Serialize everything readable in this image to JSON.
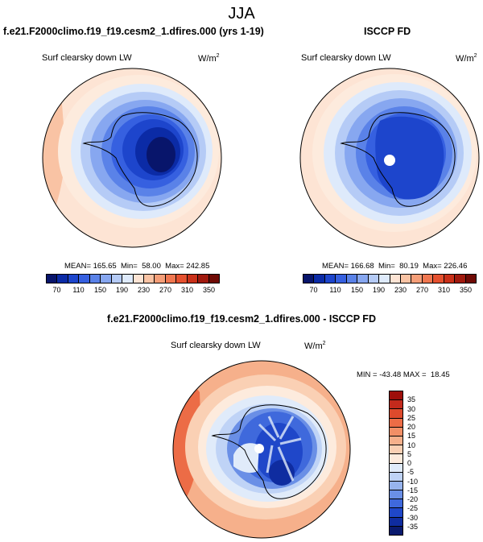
{
  "season": "JJA",
  "panel_model": {
    "title": "f.e21.F2000climo.f19_f19.cesm2_1.dfires.000 (yrs 1-19)",
    "variable": "Surf clearsky down LW",
    "units": "W/m",
    "units_exp": "2",
    "stats": "MEAN= 165.65  Min=  58.00  Max= 242.85"
  },
  "panel_obs": {
    "title": "ISCCP FD",
    "variable": "Surf clearsky down LW",
    "units": "W/m",
    "units_exp": "2",
    "stats": "MEAN= 166.68  Min=  80.19  Max= 226.46"
  },
  "panel_diff": {
    "title": "f.e21.F2000climo.f19_f19.cesm2_1.dfires.000 - ISCCP FD",
    "variable": "Surf clearsky down LW",
    "units": "W/m",
    "units_exp": "2",
    "stats": "MIN = -43.48 MAX =  18.45"
  },
  "abs_colorbar": {
    "labels": [
      "70",
      "110",
      "150",
      "190",
      "230",
      "270",
      "310",
      "350"
    ],
    "colors": [
      "#08156b",
      "#0b2ba6",
      "#1d45cc",
      "#3660e0",
      "#5a82e8",
      "#87a7f0",
      "#b5cbf6",
      "#deeafb",
      "#fde4d4",
      "#f9c3a4",
      "#f59e78",
      "#f07750",
      "#e5512f",
      "#c93019",
      "#a0190d",
      "#6f0a05"
    ]
  },
  "diff_colorbar": {
    "labels": [
      "35",
      "30",
      "25",
      "20",
      "15",
      "10",
      "5",
      "0",
      "-5",
      "-10",
      "-15",
      "-20",
      "-25",
      "-30",
      "-35"
    ],
    "colors": [
      "#9e0f0a",
      "#c32a1c",
      "#dd4a2c",
      "#ec6c46",
      "#f28f66",
      "#f6b08b",
      "#fad0b4",
      "#fdebdd",
      "#e0ebfa",
      "#bfd3f6",
      "#97b4ee",
      "#6a8fe6",
      "#3f69dc",
      "#1f47c9",
      "#0f2ca0",
      "#0a1a6e"
    ]
  },
  "chart_data": [
    {
      "type": "heatmap",
      "title": "f.e21.F2000climo.f19_f19.cesm2_1.dfires.000 (yrs 1-19)",
      "subtitle": "Surf clearsky down LW (W/m2)",
      "projection": "south polar stereographic",
      "mean": 165.65,
      "min": 58.0,
      "max": 242.85,
      "contour_levels": [
        70,
        90,
        110,
        130,
        150,
        170,
        190,
        210,
        230,
        250,
        270,
        290,
        310,
        330,
        350
      ]
    },
    {
      "type": "heatmap",
      "title": "ISCCP FD",
      "subtitle": "Surf clearsky down LW (W/m2)",
      "projection": "south polar stereographic",
      "mean": 166.68,
      "min": 80.19,
      "max": 226.46,
      "contour_levels": [
        70,
        90,
        110,
        130,
        150,
        170,
        190,
        210,
        230,
        250,
        270,
        290,
        310,
        330,
        350
      ]
    },
    {
      "type": "heatmap",
      "title": "f.e21.F2000climo.f19_f19.cesm2_1.dfires.000 - ISCCP FD",
      "subtitle": "Surf clearsky down LW (W/m2)",
      "projection": "south polar stereographic",
      "min": -43.48,
      "max": 18.45,
      "contour_levels": [
        -35,
        -30,
        -25,
        -20,
        -15,
        -10,
        -5,
        0,
        5,
        10,
        15,
        20,
        25,
        30,
        35
      ]
    }
  ]
}
